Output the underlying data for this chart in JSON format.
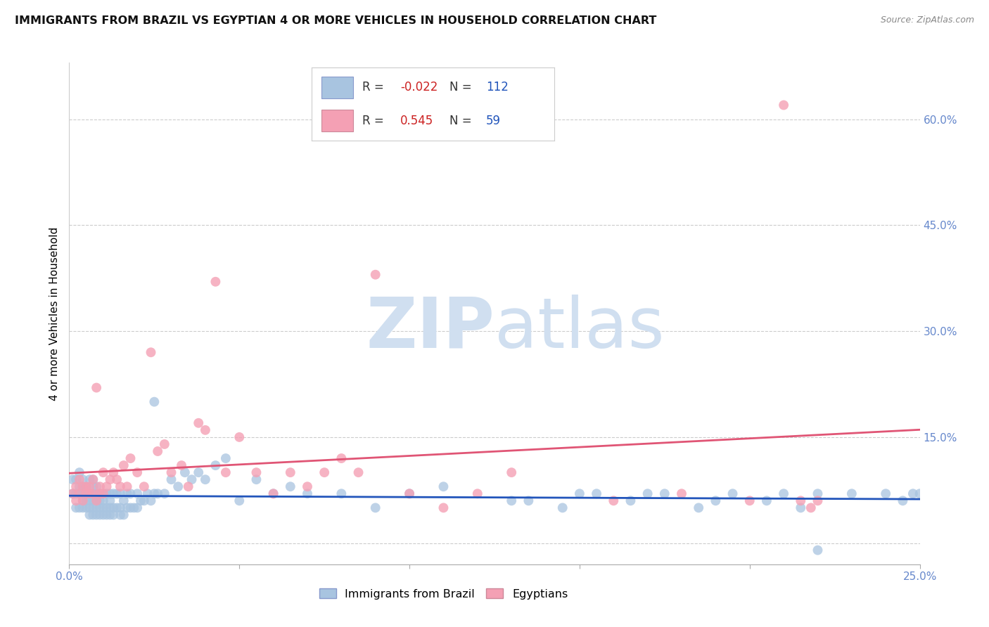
{
  "title": "IMMIGRANTS FROM BRAZIL VS EGYPTIAN 4 OR MORE VEHICLES IN HOUSEHOLD CORRELATION CHART",
  "source": "Source: ZipAtlas.com",
  "ylabel_label": "4 or more Vehicles in Household",
  "xlim": [
    0.0,
    0.25
  ],
  "ylim": [
    -0.03,
    0.68
  ],
  "xticks": [
    0.0,
    0.05,
    0.1,
    0.15,
    0.2,
    0.25
  ],
  "xtick_labels": [
    "0.0%",
    "",
    "",
    "",
    "",
    "25.0%"
  ],
  "yticks": [
    0.0,
    0.15,
    0.3,
    0.45,
    0.6
  ],
  "ytick_labels": [
    "",
    "15.0%",
    "30.0%",
    "45.0%",
    "60.0%"
  ],
  "brazil_R": -0.022,
  "brazil_N": 112,
  "egypt_R": 0.545,
  "egypt_N": 59,
  "brazil_color": "#a8c4e0",
  "egypt_color": "#f4a0b4",
  "brazil_line_color": "#2255bb",
  "egypt_line_color": "#e05575",
  "grid_color": "#cccccc",
  "watermark_zip": "ZIP",
  "watermark_atlas": "atlas",
  "watermark_color": "#d0dff0",
  "background_color": "#ffffff",
  "title_fontsize": 11.5,
  "tick_label_color": "#6688cc",
  "legend_R_color": "#cc2222",
  "legend_N_color": "#2255bb",
  "brazil_x": [
    0.001,
    0.001,
    0.002,
    0.002,
    0.002,
    0.003,
    0.003,
    0.003,
    0.003,
    0.004,
    0.004,
    0.004,
    0.004,
    0.004,
    0.005,
    0.005,
    0.005,
    0.005,
    0.006,
    0.006,
    0.006,
    0.006,
    0.006,
    0.007,
    0.007,
    0.007,
    0.007,
    0.007,
    0.007,
    0.008,
    0.008,
    0.008,
    0.008,
    0.008,
    0.009,
    0.009,
    0.009,
    0.009,
    0.01,
    0.01,
    0.01,
    0.01,
    0.011,
    0.011,
    0.011,
    0.012,
    0.012,
    0.012,
    0.012,
    0.013,
    0.013,
    0.013,
    0.014,
    0.014,
    0.015,
    0.015,
    0.015,
    0.016,
    0.016,
    0.017,
    0.017,
    0.018,
    0.018,
    0.019,
    0.02,
    0.02,
    0.021,
    0.022,
    0.023,
    0.024,
    0.025,
    0.026,
    0.028,
    0.03,
    0.032,
    0.034,
    0.036,
    0.038,
    0.04,
    0.043,
    0.046,
    0.05,
    0.055,
    0.06,
    0.065,
    0.07,
    0.08,
    0.09,
    0.1,
    0.11,
    0.13,
    0.15,
    0.17,
    0.19,
    0.21,
    0.22,
    0.23,
    0.24,
    0.245,
    0.248,
    0.25,
    0.22,
    0.215,
    0.205,
    0.195,
    0.185,
    0.175,
    0.165,
    0.155,
    0.145,
    0.135,
    0.025
  ],
  "brazil_y": [
    0.07,
    0.09,
    0.05,
    0.07,
    0.09,
    0.05,
    0.07,
    0.08,
    0.1,
    0.05,
    0.06,
    0.07,
    0.08,
    0.09,
    0.05,
    0.06,
    0.07,
    0.08,
    0.04,
    0.05,
    0.06,
    0.07,
    0.09,
    0.04,
    0.05,
    0.06,
    0.07,
    0.08,
    0.09,
    0.04,
    0.05,
    0.06,
    0.07,
    0.08,
    0.04,
    0.05,
    0.06,
    0.07,
    0.04,
    0.05,
    0.06,
    0.07,
    0.04,
    0.05,
    0.07,
    0.04,
    0.05,
    0.06,
    0.07,
    0.04,
    0.05,
    0.07,
    0.05,
    0.07,
    0.04,
    0.05,
    0.07,
    0.04,
    0.06,
    0.05,
    0.07,
    0.05,
    0.07,
    0.05,
    0.05,
    0.07,
    0.06,
    0.06,
    0.07,
    0.06,
    0.07,
    0.07,
    0.07,
    0.09,
    0.08,
    0.1,
    0.09,
    0.1,
    0.09,
    0.11,
    0.12,
    0.06,
    0.09,
    0.07,
    0.08,
    0.07,
    0.07,
    0.05,
    0.07,
    0.08,
    0.06,
    0.07,
    0.07,
    0.06,
    0.07,
    0.07,
    0.07,
    0.07,
    0.06,
    0.07,
    0.07,
    -0.01,
    0.05,
    0.06,
    0.07,
    0.05,
    0.07,
    0.06,
    0.07,
    0.05,
    0.06,
    0.2
  ],
  "egypt_x": [
    0.001,
    0.002,
    0.002,
    0.003,
    0.003,
    0.004,
    0.004,
    0.005,
    0.005,
    0.006,
    0.006,
    0.007,
    0.007,
    0.008,
    0.008,
    0.009,
    0.009,
    0.01,
    0.01,
    0.011,
    0.012,
    0.013,
    0.014,
    0.015,
    0.016,
    0.017,
    0.018,
    0.02,
    0.022,
    0.024,
    0.026,
    0.028,
    0.03,
    0.033,
    0.035,
    0.038,
    0.04,
    0.043,
    0.046,
    0.05,
    0.055,
    0.06,
    0.065,
    0.07,
    0.075,
    0.08,
    0.085,
    0.09,
    0.1,
    0.11,
    0.12,
    0.13,
    0.16,
    0.18,
    0.2,
    0.21,
    0.215,
    0.218,
    0.22
  ],
  "egypt_y": [
    0.07,
    0.06,
    0.08,
    0.07,
    0.09,
    0.06,
    0.08,
    0.07,
    0.08,
    0.07,
    0.08,
    0.07,
    0.09,
    0.06,
    0.22,
    0.07,
    0.08,
    0.07,
    0.1,
    0.08,
    0.09,
    0.1,
    0.09,
    0.08,
    0.11,
    0.08,
    0.12,
    0.1,
    0.08,
    0.27,
    0.13,
    0.14,
    0.1,
    0.11,
    0.08,
    0.17,
    0.16,
    0.37,
    0.1,
    0.15,
    0.1,
    0.07,
    0.1,
    0.08,
    0.1,
    0.12,
    0.1,
    0.38,
    0.07,
    0.05,
    0.07,
    0.1,
    0.06,
    0.07,
    0.06,
    0.62,
    0.06,
    0.05,
    0.06
  ]
}
